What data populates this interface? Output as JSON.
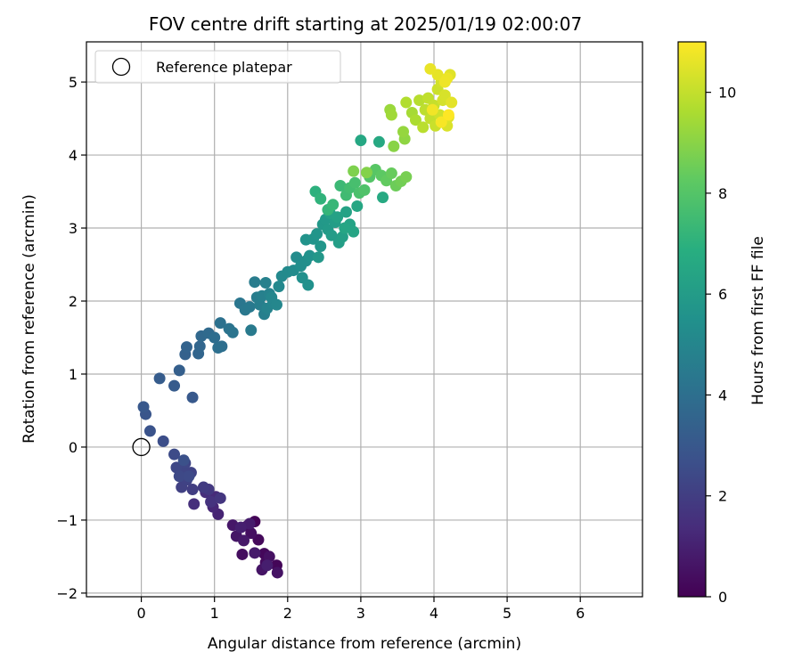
{
  "chart_data": {
    "type": "scatter",
    "title": "FOV centre drift starting at 2025/01/19 02:00:07",
    "xlabel": "Angular distance from reference (arcmin)",
    "ylabel": "Rotation from reference (arcmin)",
    "xlim": [
      -0.75,
      6.85
    ],
    "ylim": [
      -2.05,
      5.55
    ],
    "xticks": [
      0,
      1,
      2,
      3,
      4,
      5,
      6
    ],
    "yticks": [
      -2,
      -1,
      0,
      1,
      2,
      3,
      4,
      5
    ],
    "grid": true,
    "colormap": "viridis",
    "colorbar": {
      "label": "Hours from first FF file",
      "range": [
        0,
        11
      ],
      "ticks": [
        0,
        2,
        4,
        6,
        8,
        10
      ]
    },
    "legend": {
      "position": "top-left",
      "entries": [
        "Reference platepar"
      ]
    },
    "reference_point": {
      "x": 0,
      "y": 0
    },
    "points": [
      {
        "x": 1.55,
        "y": -1.02,
        "t": 0.1
      },
      {
        "x": 1.85,
        "y": -1.62,
        "t": 0.15
      },
      {
        "x": 1.68,
        "y": -1.46,
        "t": 0.2
      },
      {
        "x": 1.6,
        "y": -1.27,
        "t": 0.25
      },
      {
        "x": 1.7,
        "y": -1.58,
        "t": 0.3
      },
      {
        "x": 1.45,
        "y": -1.08,
        "t": 0.35
      },
      {
        "x": 1.38,
        "y": -1.47,
        "t": 0.4
      },
      {
        "x": 1.5,
        "y": -1.18,
        "t": 0.45
      },
      {
        "x": 1.75,
        "y": -1.5,
        "t": 0.5
      },
      {
        "x": 1.86,
        "y": -1.72,
        "t": 0.55
      },
      {
        "x": 1.65,
        "y": -1.68,
        "t": 0.6
      },
      {
        "x": 1.3,
        "y": -1.22,
        "t": 0.65
      },
      {
        "x": 1.25,
        "y": -1.07,
        "t": 0.7
      },
      {
        "x": 1.4,
        "y": -1.28,
        "t": 0.75
      },
      {
        "x": 1.55,
        "y": -1.45,
        "t": 0.8
      },
      {
        "x": 1.48,
        "y": -1.05,
        "t": 0.85
      },
      {
        "x": 1.72,
        "y": -1.62,
        "t": 0.9
      },
      {
        "x": 1.36,
        "y": -1.1,
        "t": 0.95
      },
      {
        "x": 1.05,
        "y": -0.92,
        "t": 1.1
      },
      {
        "x": 0.98,
        "y": -0.82,
        "t": 1.2
      },
      {
        "x": 1.02,
        "y": -0.68,
        "t": 1.3
      },
      {
        "x": 0.88,
        "y": -0.62,
        "t": 1.4
      },
      {
        "x": 0.72,
        "y": -0.78,
        "t": 1.5
      },
      {
        "x": 0.95,
        "y": -0.75,
        "t": 1.6
      },
      {
        "x": 1.08,
        "y": -0.7,
        "t": 1.7
      },
      {
        "x": 0.92,
        "y": -0.58,
        "t": 1.8
      },
      {
        "x": 0.85,
        "y": -0.55,
        "t": 1.9
      },
      {
        "x": 0.7,
        "y": -0.58,
        "t": 2.0
      },
      {
        "x": 0.55,
        "y": -0.55,
        "t": 2.1
      },
      {
        "x": 0.62,
        "y": -0.45,
        "t": 2.15
      },
      {
        "x": 0.68,
        "y": -0.35,
        "t": 2.2
      },
      {
        "x": 0.55,
        "y": -0.3,
        "t": 2.25
      },
      {
        "x": 0.6,
        "y": -0.22,
        "t": 2.3
      },
      {
        "x": 0.48,
        "y": -0.28,
        "t": 2.35
      },
      {
        "x": 0.52,
        "y": -0.4,
        "t": 2.4
      },
      {
        "x": 0.65,
        "y": -0.4,
        "t": 2.45
      },
      {
        "x": 0.45,
        "y": -0.1,
        "t": 2.5
      },
      {
        "x": 0.3,
        "y": 0.08,
        "t": 2.6
      },
      {
        "x": 0.58,
        "y": -0.18,
        "t": 2.7
      },
      {
        "x": 0.12,
        "y": 0.22,
        "t": 2.8
      },
      {
        "x": 0.06,
        "y": 0.45,
        "t": 2.9
      },
      {
        "x": 0.03,
        "y": 0.55,
        "t": 3.0
      },
      {
        "x": 0.7,
        "y": 0.68,
        "t": 3.05
      },
      {
        "x": 0.45,
        "y": 0.84,
        "t": 3.15
      },
      {
        "x": 0.25,
        "y": 0.94,
        "t": 3.2
      },
      {
        "x": 0.52,
        "y": 1.05,
        "t": 3.3
      },
      {
        "x": 0.6,
        "y": 1.27,
        "t": 3.4
      },
      {
        "x": 0.62,
        "y": 1.37,
        "t": 3.5
      },
      {
        "x": 0.78,
        "y": 1.28,
        "t": 3.55
      },
      {
        "x": 0.8,
        "y": 1.38,
        "t": 3.6
      },
      {
        "x": 0.82,
        "y": 1.52,
        "t": 3.7
      },
      {
        "x": 0.92,
        "y": 1.56,
        "t": 3.8
      },
      {
        "x": 1.0,
        "y": 1.5,
        "t": 3.9
      },
      {
        "x": 1.1,
        "y": 1.38,
        "t": 3.95
      },
      {
        "x": 1.05,
        "y": 1.36,
        "t": 4.0
      },
      {
        "x": 1.08,
        "y": 1.7,
        "t": 4.1
      },
      {
        "x": 1.2,
        "y": 1.62,
        "t": 4.15
      },
      {
        "x": 1.25,
        "y": 1.57,
        "t": 4.2
      },
      {
        "x": 1.35,
        "y": 1.97,
        "t": 4.3
      },
      {
        "x": 1.42,
        "y": 1.88,
        "t": 4.4
      },
      {
        "x": 1.48,
        "y": 1.92,
        "t": 4.45
      },
      {
        "x": 1.5,
        "y": 1.6,
        "t": 4.5
      },
      {
        "x": 1.55,
        "y": 2.26,
        "t": 4.55
      },
      {
        "x": 1.58,
        "y": 2.05,
        "t": 4.6
      },
      {
        "x": 1.62,
        "y": 1.95,
        "t": 4.65
      },
      {
        "x": 1.68,
        "y": 1.82,
        "t": 4.7
      },
      {
        "x": 1.65,
        "y": 2.07,
        "t": 4.75
      },
      {
        "x": 1.7,
        "y": 2.25,
        "t": 4.8
      },
      {
        "x": 1.75,
        "y": 2.1,
        "t": 4.85
      },
      {
        "x": 1.72,
        "y": 1.9,
        "t": 4.9
      },
      {
        "x": 1.8,
        "y": 1.97,
        "t": 4.95
      },
      {
        "x": 1.78,
        "y": 2.05,
        "t": 5.0
      },
      {
        "x": 1.85,
        "y": 1.95,
        "t": 5.05
      },
      {
        "x": 1.88,
        "y": 2.2,
        "t": 5.1
      },
      {
        "x": 1.92,
        "y": 2.34,
        "t": 5.15
      },
      {
        "x": 2.0,
        "y": 2.4,
        "t": 5.2
      },
      {
        "x": 2.08,
        "y": 2.42,
        "t": 5.25
      },
      {
        "x": 2.12,
        "y": 2.6,
        "t": 5.3
      },
      {
        "x": 2.18,
        "y": 2.48,
        "t": 5.35
      },
      {
        "x": 2.25,
        "y": 2.55,
        "t": 5.4
      },
      {
        "x": 2.2,
        "y": 2.32,
        "t": 5.45
      },
      {
        "x": 2.28,
        "y": 2.22,
        "t": 5.5
      },
      {
        "x": 2.3,
        "y": 2.62,
        "t": 5.55
      },
      {
        "x": 2.25,
        "y": 2.84,
        "t": 5.6
      },
      {
        "x": 2.35,
        "y": 2.85,
        "t": 5.65
      },
      {
        "x": 2.4,
        "y": 2.92,
        "t": 5.7
      },
      {
        "x": 2.45,
        "y": 2.75,
        "t": 5.75
      },
      {
        "x": 2.42,
        "y": 2.6,
        "t": 5.8
      },
      {
        "x": 2.48,
        "y": 3.05,
        "t": 5.85
      },
      {
        "x": 2.52,
        "y": 3.12,
        "t": 5.9
      },
      {
        "x": 2.55,
        "y": 2.98,
        "t": 5.95
      },
      {
        "x": 2.6,
        "y": 2.9,
        "t": 6.0
      },
      {
        "x": 2.65,
        "y": 3.08,
        "t": 6.05
      },
      {
        "x": 2.7,
        "y": 2.8,
        "t": 6.1
      },
      {
        "x": 2.75,
        "y": 2.88,
        "t": 6.15
      },
      {
        "x": 2.58,
        "y": 3.2,
        "t": 6.2
      },
      {
        "x": 2.68,
        "y": 3.15,
        "t": 6.25
      },
      {
        "x": 2.8,
        "y": 3.22,
        "t": 6.3
      },
      {
        "x": 2.85,
        "y": 3.05,
        "t": 6.35
      },
      {
        "x": 2.9,
        "y": 2.95,
        "t": 6.4
      },
      {
        "x": 2.78,
        "y": 3.0,
        "t": 6.45
      },
      {
        "x": 2.95,
        "y": 3.3,
        "t": 6.5
      },
      {
        "x": 3.0,
        "y": 4.2,
        "t": 6.55
      },
      {
        "x": 3.25,
        "y": 4.18,
        "t": 6.6
      },
      {
        "x": 3.3,
        "y": 3.42,
        "t": 6.65
      },
      {
        "x": 2.38,
        "y": 3.5,
        "t": 7.0
      },
      {
        "x": 2.45,
        "y": 3.4,
        "t": 7.1
      },
      {
        "x": 2.55,
        "y": 3.25,
        "t": 7.2
      },
      {
        "x": 2.62,
        "y": 3.32,
        "t": 7.3
      },
      {
        "x": 2.72,
        "y": 3.58,
        "t": 7.4
      },
      {
        "x": 2.8,
        "y": 3.45,
        "t": 7.5
      },
      {
        "x": 2.85,
        "y": 3.55,
        "t": 7.6
      },
      {
        "x": 2.92,
        "y": 3.62,
        "t": 7.7
      },
      {
        "x": 2.98,
        "y": 3.48,
        "t": 7.8
      },
      {
        "x": 3.05,
        "y": 3.52,
        "t": 7.9
      },
      {
        "x": 3.12,
        "y": 3.7,
        "t": 8.0
      },
      {
        "x": 3.2,
        "y": 3.8,
        "t": 8.1
      },
      {
        "x": 3.28,
        "y": 3.72,
        "t": 8.2
      },
      {
        "x": 3.35,
        "y": 3.65,
        "t": 8.3
      },
      {
        "x": 3.42,
        "y": 3.75,
        "t": 8.4
      },
      {
        "x": 3.48,
        "y": 3.58,
        "t": 8.5
      },
      {
        "x": 3.55,
        "y": 3.64,
        "t": 8.6
      },
      {
        "x": 3.62,
        "y": 3.7,
        "t": 8.7
      },
      {
        "x": 2.9,
        "y": 3.78,
        "t": 8.8
      },
      {
        "x": 3.08,
        "y": 3.76,
        "t": 8.9
      },
      {
        "x": 3.45,
        "y": 4.12,
        "t": 9.0
      },
      {
        "x": 3.6,
        "y": 4.22,
        "t": 9.1
      },
      {
        "x": 3.58,
        "y": 4.32,
        "t": 9.2
      },
      {
        "x": 3.4,
        "y": 4.62,
        "t": 9.3
      },
      {
        "x": 3.42,
        "y": 4.55,
        "t": 9.4
      },
      {
        "x": 3.7,
        "y": 4.58,
        "t": 9.5
      },
      {
        "x": 3.75,
        "y": 4.48,
        "t": 9.6
      },
      {
        "x": 3.62,
        "y": 4.72,
        "t": 9.7
      },
      {
        "x": 3.8,
        "y": 4.75,
        "t": 9.8
      },
      {
        "x": 3.85,
        "y": 4.38,
        "t": 9.85
      },
      {
        "x": 3.88,
        "y": 4.62,
        "t": 9.9
      },
      {
        "x": 3.92,
        "y": 4.78,
        "t": 9.95
      },
      {
        "x": 3.95,
        "y": 4.5,
        "t": 10.0
      },
      {
        "x": 4.0,
        "y": 4.68,
        "t": 10.05
      },
      {
        "x": 4.02,
        "y": 4.4,
        "t": 10.1
      },
      {
        "x": 4.05,
        "y": 4.9,
        "t": 10.15
      },
      {
        "x": 4.08,
        "y": 4.55,
        "t": 10.2
      },
      {
        "x": 4.1,
        "y": 5.0,
        "t": 10.25
      },
      {
        "x": 4.12,
        "y": 4.75,
        "t": 10.3
      },
      {
        "x": 4.15,
        "y": 4.82,
        "t": 10.35
      },
      {
        "x": 4.18,
        "y": 4.4,
        "t": 10.4
      },
      {
        "x": 4.2,
        "y": 4.52,
        "t": 10.45
      },
      {
        "x": 4.22,
        "y": 5.1,
        "t": 10.5
      },
      {
        "x": 4.24,
        "y": 4.72,
        "t": 10.55
      },
      {
        "x": 4.05,
        "y": 5.1,
        "t": 10.6
      },
      {
        "x": 3.95,
        "y": 5.18,
        "t": 10.65
      },
      {
        "x": 4.18,
        "y": 5.05,
        "t": 10.7
      },
      {
        "x": 4.15,
        "y": 5.0,
        "t": 10.75
      },
      {
        "x": 3.98,
        "y": 4.62,
        "t": 10.8
      },
      {
        "x": 4.1,
        "y": 4.45,
        "t": 10.9
      },
      {
        "x": 4.2,
        "y": 4.55,
        "t": 11.0
      }
    ]
  }
}
